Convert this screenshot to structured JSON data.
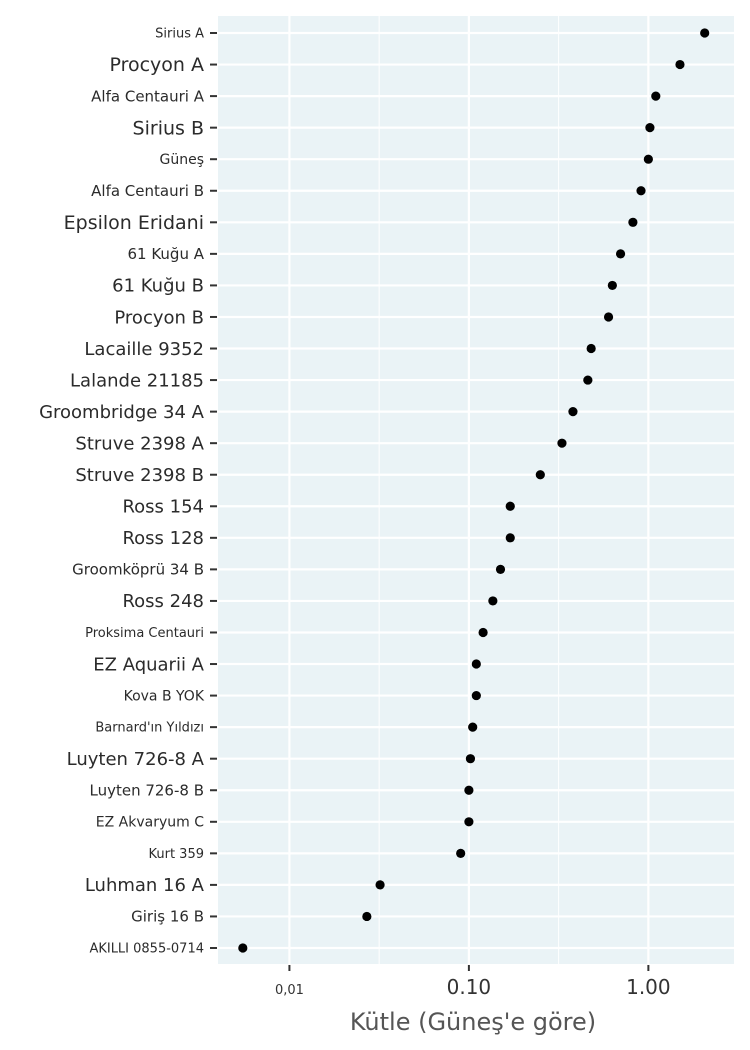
{
  "chart_data": {
    "type": "scatter",
    "title": "",
    "xlabel": "Kütle (Güneş'e göre)",
    "ylabel": "",
    "x_scale": "log",
    "xlim": [
      0.004,
      3.0
    ],
    "x_ticks": [
      {
        "value": 0.01,
        "label": "0,01"
      },
      {
        "value": 0.1,
        "label": "0.10"
      },
      {
        "value": 1.0,
        "label": "1.00"
      }
    ],
    "grid": true,
    "background": "#eaf3f6",
    "point_color": "#000000",
    "categories": [
      "Sirius A",
      "Procyon A",
      "Alfa Centauri A",
      "Sirius B",
      "Güneş",
      "Alfa Centauri B",
      "Epsilon Eridani",
      "61 Kuğu A",
      "61 Kuğu B",
      "Procyon B",
      "Lacaille 9352",
      "Lalande 21185",
      "Groombridge 34 A",
      "Struve 2398 A",
      "Struve 2398 B",
      "Ross 154",
      "Ross 128",
      "Groomköprü 34 B",
      "Ross 248",
      "Proksima Centauri",
      "EZ Aquarii A",
      "Kova B YOK",
      "Barnard'ın Yıldızı",
      "Luyten 726-8 A",
      "Luyten 726-8 B",
      "EZ Akvaryum C",
      "Kurt 359",
      "Luhman 16 A",
      "Giriş 16 B",
      "AKILLI 0855-0714"
    ],
    "values": [
      2.06,
      1.5,
      1.1,
      1.02,
      1.0,
      0.91,
      0.82,
      0.7,
      0.63,
      0.6,
      0.48,
      0.46,
      0.38,
      0.33,
      0.25,
      0.17,
      0.17,
      0.15,
      0.136,
      0.12,
      0.11,
      0.11,
      0.105,
      0.102,
      0.1,
      0.1,
      0.09,
      0.032,
      0.027,
      0.0055
    ]
  }
}
